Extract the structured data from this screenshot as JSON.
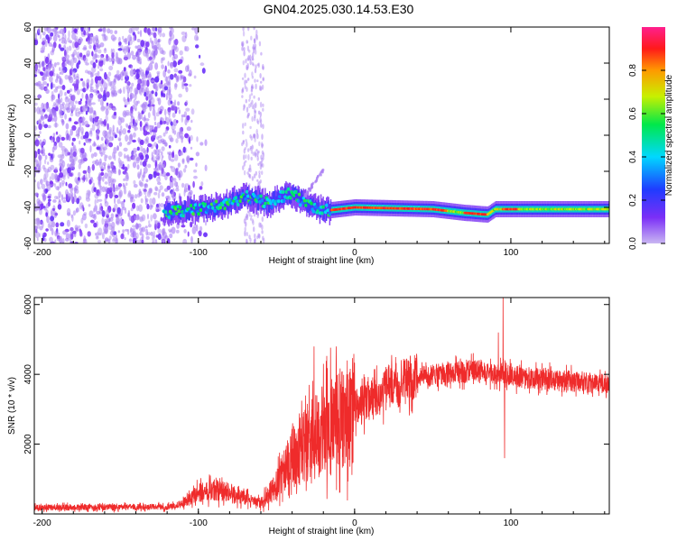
{
  "title": "GN04.2025.030.14.53.E30",
  "chart_data": [
    {
      "type": "heatmap",
      "xlabel": "Height of straight line (km)",
      "ylabel": "Frequency (Hz)",
      "xlim": [
        -205,
        163
      ],
      "ylim": [
        -60,
        60
      ],
      "x_ticks": [
        -200,
        -100,
        0,
        100
      ],
      "y_ticks": [
        -60,
        -40,
        -20,
        0,
        20,
        40,
        60
      ],
      "colorbar": {
        "label": "Normalized spectral amplitude",
        "range": [
          0,
          1
        ],
        "ticks": [
          0.0,
          0.2,
          0.4,
          0.6,
          0.8
        ],
        "colors": [
          "#c9b6f2",
          "#7b2ff7",
          "#1f3cff",
          "#00d8ff",
          "#00e84a",
          "#c8f000",
          "#ff9a00",
          "#ff1a1a",
          "#ff1f8e"
        ]
      },
      "features": {
        "noise_region_x": [
          -205,
          -95
        ],
        "noise_strip_x": [
          -72,
          -58
        ],
        "carrier_track": [
          {
            "x": -120,
            "y": -43
          },
          {
            "x": -100,
            "y": -41
          },
          {
            "x": -85,
            "y": -39
          },
          {
            "x": -70,
            "y": -34
          },
          {
            "x": -55,
            "y": -38
          },
          {
            "x": -42,
            "y": -32
          },
          {
            "x": -30,
            "y": -38
          },
          {
            "x": -20,
            "y": -42
          },
          {
            "x": 0,
            "y": -40
          },
          {
            "x": 50,
            "y": -41
          },
          {
            "x": 70,
            "y": -43
          },
          {
            "x": 85,
            "y": -44
          },
          {
            "x": 90,
            "y": -41
          },
          {
            "x": 130,
            "y": -41
          },
          {
            "x": 163,
            "y": -41
          }
        ],
        "strong_segments_x": [
          [
            -20,
            60
          ],
          [
            70,
            85
          ],
          [
            95,
            105
          ]
        ]
      }
    },
    {
      "type": "line",
      "xlabel": "Height of straight line (km)",
      "ylabel": "SNR (10 * v/v)",
      "xlim": [
        -205,
        163
      ],
      "ylim": [
        0,
        6200
      ],
      "x_ticks": [
        -200,
        -100,
        0,
        100
      ],
      "y_ticks": [
        2000,
        4000,
        6000
      ],
      "series": [
        {
          "color": "#ef2b2b",
          "envelope": [
            {
              "x": -205,
              "y": 180
            },
            {
              "x": -120,
              "y": 200
            },
            {
              "x": -110,
              "y": 300
            },
            {
              "x": -100,
              "y": 600
            },
            {
              "x": -90,
              "y": 700
            },
            {
              "x": -80,
              "y": 600
            },
            {
              "x": -70,
              "y": 450
            },
            {
              "x": -60,
              "y": 300
            },
            {
              "x": -50,
              "y": 800
            },
            {
              "x": -40,
              "y": 1600
            },
            {
              "x": -30,
              "y": 2000
            },
            {
              "x": -20,
              "y": 2400
            },
            {
              "x": -10,
              "y": 2700
            },
            {
              "x": 0,
              "y": 3000
            },
            {
              "x": 10,
              "y": 3300
            },
            {
              "x": 20,
              "y": 3600
            },
            {
              "x": 40,
              "y": 3900
            },
            {
              "x": 60,
              "y": 4050
            },
            {
              "x": 80,
              "y": 4100
            },
            {
              "x": 90,
              "y": 4000
            },
            {
              "x": 110,
              "y": 3900
            },
            {
              "x": 140,
              "y": 3800
            },
            {
              "x": 163,
              "y": 3700
            }
          ],
          "spikes": [
            {
              "x": -26,
              "y": 4800
            },
            {
              "x": -20,
              "y": 4300
            },
            {
              "x": -15,
              "y": 3600
            },
            {
              "x": 92,
              "y": 5200
            },
            {
              "x": 95,
              "y": 6200
            },
            {
              "x": 96,
              "y": 1600
            }
          ]
        }
      ]
    }
  ]
}
